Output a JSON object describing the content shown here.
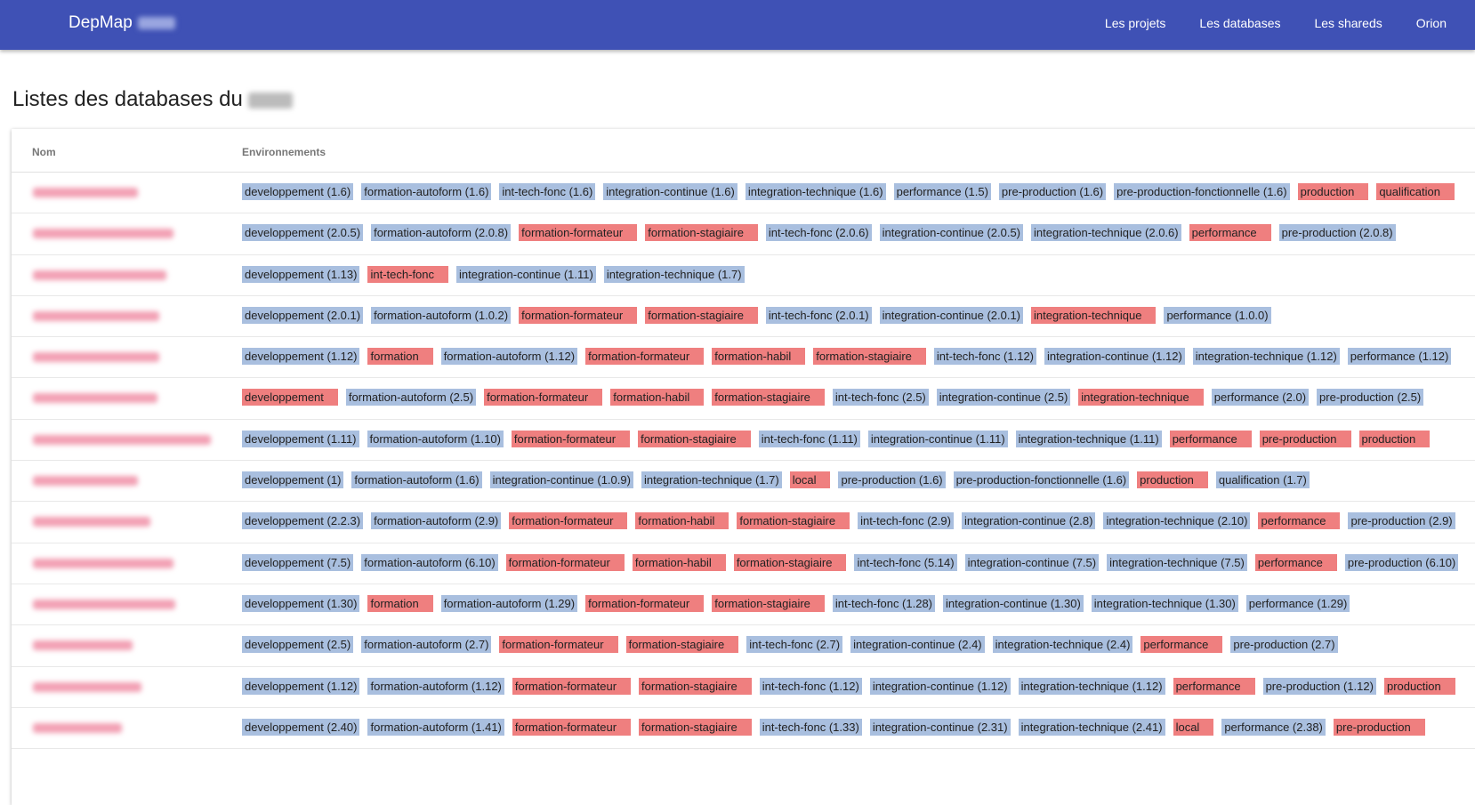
{
  "header": {
    "brand": "DepMap",
    "nav": [
      "Les projets",
      "Les databases",
      "Les shareds",
      "Orion"
    ]
  },
  "page_title": "Listes des databases du",
  "table": {
    "columns": [
      "Nom",
      "Environnements"
    ],
    "rows": [
      {
        "tags": [
          "developpement (1.6)",
          "formation-autoform (1.6)",
          "int-tech-fonc (1.6)",
          "integration-continue (1.6)",
          "integration-technique (1.6)",
          "performance (1.5)",
          "pre-production (1.6)",
          "pre-production-fonctionnelle (1.6)",
          "production",
          "qualification"
        ]
      },
      {
        "tags": [
          "developpement (2.0.5)",
          "formation-autoform (2.0.8)",
          "formation-formateur",
          "formation-stagiaire",
          "int-tech-fonc (2.0.6)",
          "integration-continue (2.0.5)",
          "integration-technique (2.0.6)",
          "performance",
          "pre-production (2.0.8)"
        ]
      },
      {
        "tags": [
          "developpement (1.13)",
          "int-tech-fonc",
          "integration-continue (1.11)",
          "integration-technique (1.7)"
        ]
      },
      {
        "tags": [
          "developpement (2.0.1)",
          "formation-autoform (1.0.2)",
          "formation-formateur",
          "formation-stagiaire",
          "int-tech-fonc (2.0.1)",
          "integration-continue (2.0.1)",
          "integration-technique",
          "performance (1.0.0)"
        ]
      },
      {
        "tags": [
          "developpement (1.12)",
          "formation",
          "formation-autoform (1.12)",
          "formation-formateur",
          "formation-habil",
          "formation-stagiaire",
          "int-tech-fonc (1.12)",
          "integration-continue (1.12)",
          "integration-technique (1.12)",
          "performance (1.12)"
        ]
      },
      {
        "tags": [
          "developpement",
          "formation-autoform (2.5)",
          "formation-formateur",
          "formation-habil",
          "formation-stagiaire",
          "int-tech-fonc (2.5)",
          "integration-continue (2.5)",
          "integration-technique",
          "performance (2.0)",
          "pre-production (2.5)"
        ]
      },
      {
        "tags": [
          "developpement (1.11)",
          "formation-autoform (1.10)",
          "formation-formateur",
          "formation-stagiaire",
          "int-tech-fonc (1.11)",
          "integration-continue (1.11)",
          "integration-technique (1.11)",
          "performance",
          "pre-production",
          "production"
        ]
      },
      {
        "tags": [
          "developpement (1)",
          "formation-autoform (1.6)",
          "integration-continue (1.0.9)",
          "integration-technique (1.7)",
          "local",
          "pre-production (1.6)",
          "pre-production-fonctionnelle (1.6)",
          "production",
          "qualification (1.7)"
        ]
      },
      {
        "tags": [
          "developpement (2.2.3)",
          "formation-autoform (2.9)",
          "formation-formateur",
          "formation-habil",
          "formation-stagiaire",
          "int-tech-fonc (2.9)",
          "integration-continue (2.8)",
          "integration-technique (2.10)",
          "performance",
          "pre-production (2.9)"
        ]
      },
      {
        "tags": [
          "developpement (7.5)",
          "formation-autoform (6.10)",
          "formation-formateur",
          "formation-habil",
          "formation-stagiaire",
          "int-tech-fonc (5.14)",
          "integration-continue (7.5)",
          "integration-technique (7.5)",
          "performance",
          "pre-production (6.10)"
        ]
      },
      {
        "tags": [
          "developpement (1.30)",
          "formation",
          "formation-autoform (1.29)",
          "formation-formateur",
          "formation-stagiaire",
          "int-tech-fonc (1.28)",
          "integration-continue (1.30)",
          "integration-technique (1.30)",
          "performance (1.29)"
        ]
      },
      {
        "tags": [
          "developpement (2.5)",
          "formation-autoform (2.7)",
          "formation-formateur",
          "formation-stagiaire",
          "int-tech-fonc (2.7)",
          "integration-continue (2.4)",
          "integration-technique (2.4)",
          "performance",
          "pre-production (2.7)"
        ]
      },
      {
        "tags": [
          "developpement (1.12)",
          "formation-autoform (1.12)",
          "formation-formateur",
          "formation-stagiaire",
          "int-tech-fonc (1.12)",
          "integration-continue (1.12)",
          "integration-technique (1.12)",
          "performance",
          "pre-production (1.12)",
          "production"
        ]
      },
      {
        "tags": [
          "developpement (2.40)",
          "formation-autoform (1.41)",
          "formation-formateur",
          "formation-stagiaire",
          "int-tech-fonc (1.33)",
          "integration-continue (2.31)",
          "integration-technique (2.41)",
          "local",
          "performance (2.38)",
          "pre-production"
        ]
      }
    ]
  }
}
